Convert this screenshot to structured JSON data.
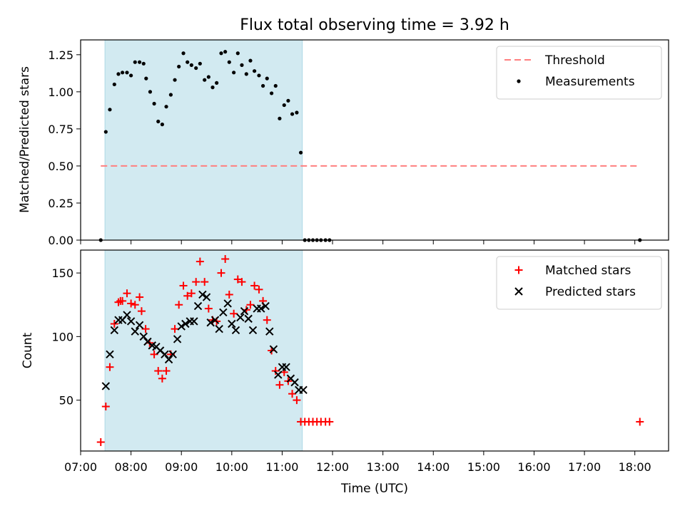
{
  "chart_data": [
    {
      "type": "scatter",
      "title": "Flux total observing time = 3.92 h",
      "ylabel": "Matched/Predicted stars",
      "xlabel": "",
      "xlim": [
        7.0,
        18.67
      ],
      "ylim": [
        0.0,
        1.35
      ],
      "yticks": [
        0.0,
        0.25,
        0.5,
        0.75,
        1.0,
        1.25
      ],
      "ytick_labels": [
        "0.00",
        "0.25",
        "0.50",
        "0.75",
        "1.00",
        "1.25"
      ],
      "xticks": [
        7,
        8,
        9,
        10,
        11,
        12,
        13,
        14,
        15,
        16,
        17,
        18
      ],
      "shaded_span": {
        "x_start": 7.483,
        "x_end": 11.4,
        "color": "#add8e6"
      },
      "legend_position": "top-right",
      "threshold": {
        "name": "Threshold",
        "y": 0.5,
        "x": [
          7.4,
          18.1
        ],
        "color": "#ff7f7f"
      },
      "series": [
        {
          "name": "Measurements",
          "color": "#000000",
          "points": [
            [
              7.4,
              0.0
            ],
            [
              7.5,
              0.73
            ],
            [
              7.58,
              0.88
            ],
            [
              7.67,
              1.05
            ],
            [
              7.75,
              1.12
            ],
            [
              7.83,
              1.13
            ],
            [
              7.92,
              1.13
            ],
            [
              8.0,
              1.11
            ],
            [
              8.08,
              1.2
            ],
            [
              8.17,
              1.2
            ],
            [
              8.25,
              1.19
            ],
            [
              8.3,
              1.09
            ],
            [
              8.38,
              1.0
            ],
            [
              8.46,
              0.92
            ],
            [
              8.54,
              0.8
            ],
            [
              8.62,
              0.78
            ],
            [
              8.7,
              0.9
            ],
            [
              8.79,
              0.98
            ],
            [
              8.87,
              1.08
            ],
            [
              8.95,
              1.17
            ],
            [
              9.04,
              1.26
            ],
            [
              9.12,
              1.2
            ],
            [
              9.2,
              1.18
            ],
            [
              9.29,
              1.16
            ],
            [
              9.37,
              1.19
            ],
            [
              9.46,
              1.08
            ],
            [
              9.54,
              1.1
            ],
            [
              9.62,
              1.03
            ],
            [
              9.7,
              1.06
            ],
            [
              9.79,
              1.26
            ],
            [
              9.87,
              1.27
            ],
            [
              9.95,
              1.2
            ],
            [
              10.04,
              1.13
            ],
            [
              10.12,
              1.26
            ],
            [
              10.2,
              1.18
            ],
            [
              10.29,
              1.12
            ],
            [
              10.37,
              1.21
            ],
            [
              10.45,
              1.14
            ],
            [
              10.54,
              1.11
            ],
            [
              10.62,
              1.04
            ],
            [
              10.7,
              1.09
            ],
            [
              10.79,
              0.99
            ],
            [
              10.87,
              1.04
            ],
            [
              10.95,
              0.82
            ],
            [
              11.04,
              0.91
            ],
            [
              11.12,
              0.94
            ],
            [
              11.2,
              0.85
            ],
            [
              11.29,
              0.86
            ],
            [
              11.37,
              0.59
            ],
            [
              11.45,
              0.0
            ],
            [
              11.53,
              0.0
            ],
            [
              11.61,
              0.0
            ],
            [
              11.69,
              0.0
            ],
            [
              11.77,
              0.0
            ],
            [
              11.86,
              0.0
            ],
            [
              11.94,
              0.0
            ],
            [
              18.1,
              0.0
            ]
          ]
        }
      ]
    },
    {
      "type": "scatter",
      "title": "",
      "xlabel": "Time (UTC)",
      "ylabel": "Count",
      "xlim": [
        7.0,
        18.67
      ],
      "ylim": [
        10,
        168
      ],
      "yticks": [
        50,
        100,
        150
      ],
      "ytick_labels": [
        "50",
        "100",
        "150"
      ],
      "xticks": [
        7,
        8,
        9,
        10,
        11,
        12,
        13,
        14,
        15,
        16,
        17,
        18
      ],
      "xtick_labels": [
        "07:00",
        "08:00",
        "09:00",
        "10:00",
        "11:00",
        "12:00",
        "13:00",
        "14:00",
        "15:00",
        "16:00",
        "17:00",
        "18:00"
      ],
      "shaded_span": {
        "x_start": 7.483,
        "x_end": 11.4,
        "color": "#add8e6"
      },
      "legend_position": "top-right",
      "series": [
        {
          "name": "Matched stars",
          "marker": "plus",
          "color": "#ff0000",
          "points": [
            [
              7.4,
              17
            ],
            [
              7.5,
              45
            ],
            [
              7.58,
              76
            ],
            [
              7.67,
              110
            ],
            [
              7.75,
              127
            ],
            [
              7.79,
              128
            ],
            [
              7.83,
              128
            ],
            [
              7.92,
              134
            ],
            [
              8.0,
              126
            ],
            [
              8.08,
              125
            ],
            [
              8.17,
              131
            ],
            [
              8.21,
              120
            ],
            [
              8.29,
              106
            ],
            [
              8.37,
              95
            ],
            [
              8.46,
              86
            ],
            [
              8.54,
              73
            ],
            [
              8.62,
              67
            ],
            [
              8.7,
              73
            ],
            [
              8.79,
              86
            ],
            [
              8.87,
              106
            ],
            [
              8.95,
              125
            ],
            [
              9.04,
              140
            ],
            [
              9.12,
              132
            ],
            [
              9.2,
              134
            ],
            [
              9.29,
              143
            ],
            [
              9.37,
              159
            ],
            [
              9.46,
              143
            ],
            [
              9.54,
              122
            ],
            [
              9.62,
              113
            ],
            [
              9.7,
              112
            ],
            [
              9.79,
              150
            ],
            [
              9.87,
              161
            ],
            [
              9.95,
              133
            ],
            [
              10.04,
              118
            ],
            [
              10.12,
              145
            ],
            [
              10.2,
              143
            ],
            [
              10.29,
              121
            ],
            [
              10.37,
              125
            ],
            [
              10.45,
              140
            ],
            [
              10.54,
              137
            ],
            [
              10.62,
              128
            ],
            [
              10.7,
              113
            ],
            [
              10.79,
              89
            ],
            [
              10.87,
              73
            ],
            [
              10.95,
              62
            ],
            [
              11.04,
              72
            ],
            [
              11.12,
              65
            ],
            [
              11.2,
              55
            ],
            [
              11.29,
              50
            ],
            [
              11.37,
              33
            ],
            [
              11.45,
              33
            ],
            [
              11.53,
              33
            ],
            [
              11.61,
              33
            ],
            [
              11.69,
              33
            ],
            [
              11.77,
              33
            ],
            [
              11.86,
              33
            ],
            [
              11.94,
              33
            ],
            [
              18.1,
              33
            ]
          ]
        },
        {
          "name": "Predicted stars",
          "marker": "x",
          "color": "#000000",
          "points": [
            [
              7.5,
              61
            ],
            [
              7.58,
              86
            ],
            [
              7.67,
              105
            ],
            [
              7.75,
              113
            ],
            [
              7.83,
              113
            ],
            [
              7.92,
              117
            ],
            [
              8.0,
              112
            ],
            [
              8.08,
              104
            ],
            [
              8.17,
              109
            ],
            [
              8.25,
              100
            ],
            [
              8.33,
              96
            ],
            [
              8.42,
              93
            ],
            [
              8.5,
              92
            ],
            [
              8.58,
              89
            ],
            [
              8.67,
              86
            ],
            [
              8.75,
              82
            ],
            [
              8.83,
              86
            ],
            [
              8.92,
              98
            ],
            [
              9.0,
              108
            ],
            [
              9.08,
              110
            ],
            [
              9.17,
              112
            ],
            [
              9.25,
              112
            ],
            [
              9.33,
              124
            ],
            [
              9.42,
              133
            ],
            [
              9.5,
              131
            ],
            [
              9.58,
              111
            ],
            [
              9.67,
              113
            ],
            [
              9.75,
              106
            ],
            [
              9.83,
              119
            ],
            [
              9.92,
              126
            ],
            [
              10.0,
              110
            ],
            [
              10.08,
              105
            ],
            [
              10.17,
              115
            ],
            [
              10.25,
              120
            ],
            [
              10.33,
              114
            ],
            [
              10.42,
              105
            ],
            [
              10.5,
              122
            ],
            [
              10.58,
              122
            ],
            [
              10.67,
              124
            ],
            [
              10.75,
              104
            ],
            [
              10.83,
              90
            ],
            [
              10.92,
              70
            ],
            [
              11.0,
              76
            ],
            [
              11.08,
              76
            ],
            [
              11.17,
              67
            ],
            [
              11.25,
              64
            ],
            [
              11.33,
              58
            ],
            [
              11.42,
              58
            ]
          ]
        }
      ]
    }
  ]
}
